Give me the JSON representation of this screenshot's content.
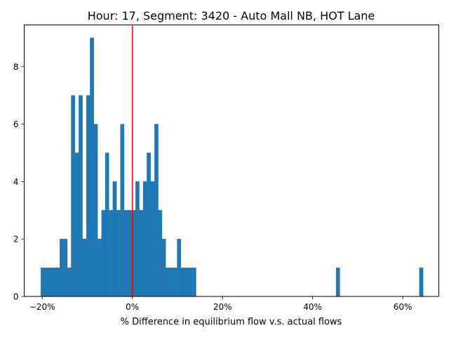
{
  "chart_data": {
    "type": "bar",
    "title": "Hour: 17, Segment: 3420 - Auto Mall NB, HOT Lane",
    "xlabel": "% Difference in equilibrium flow v.s. actual flows",
    "ylabel": "",
    "xlim": [
      -24,
      68
    ],
    "ylim": [
      0,
      9.45
    ],
    "grid": false,
    "bar_color": "#1f77b4",
    "reference_line": {
      "x": 0,
      "color": "#ff0000"
    },
    "x_ticks": [
      {
        "value": -20,
        "label": "−20%"
      },
      {
        "value": 0,
        "label": "0%"
      },
      {
        "value": 20,
        "label": "20%"
      },
      {
        "value": 40,
        "label": "40%"
      },
      {
        "value": 60,
        "label": "60%"
      }
    ],
    "y_ticks": [
      {
        "value": 0,
        "label": "0"
      },
      {
        "value": 2,
        "label": "2"
      },
      {
        "value": 4,
        "label": "4"
      },
      {
        "value": 6,
        "label": "6"
      },
      {
        "value": 8,
        "label": "8"
      }
    ],
    "bin_width": 0.84,
    "bins": [
      {
        "x": -20.3,
        "count": 1
      },
      {
        "x": -19.46,
        "count": 1
      },
      {
        "x": -18.62,
        "count": 1
      },
      {
        "x": -17.78,
        "count": 1
      },
      {
        "x": -16.94,
        "count": 1
      },
      {
        "x": -16.1,
        "count": 2
      },
      {
        "x": -15.26,
        "count": 2
      },
      {
        "x": -14.42,
        "count": 1
      },
      {
        "x": -13.58,
        "count": 7
      },
      {
        "x": -12.74,
        "count": 5
      },
      {
        "x": -11.9,
        "count": 7
      },
      {
        "x": -11.06,
        "count": 2
      },
      {
        "x": -10.22,
        "count": 7
      },
      {
        "x": -9.38,
        "count": 9
      },
      {
        "x": -8.54,
        "count": 6
      },
      {
        "x": -7.7,
        "count": 2
      },
      {
        "x": -6.86,
        "count": 3
      },
      {
        "x": -6.02,
        "count": 5
      },
      {
        "x": -5.18,
        "count": 3
      },
      {
        "x": -4.34,
        "count": 4
      },
      {
        "x": -3.5,
        "count": 3
      },
      {
        "x": -2.66,
        "count": 6
      },
      {
        "x": -1.82,
        "count": 3
      },
      {
        "x": -0.98,
        "count": 3
      },
      {
        "x": -0.14,
        "count": 3
      },
      {
        "x": 0.7,
        "count": 4
      },
      {
        "x": 1.54,
        "count": 3
      },
      {
        "x": 2.38,
        "count": 4
      },
      {
        "x": 3.22,
        "count": 5
      },
      {
        "x": 4.06,
        "count": 4
      },
      {
        "x": 4.9,
        "count": 6
      },
      {
        "x": 5.74,
        "count": 3
      },
      {
        "x": 6.58,
        "count": 2
      },
      {
        "x": 7.42,
        "count": 1
      },
      {
        "x": 8.26,
        "count": 1
      },
      {
        "x": 9.1,
        "count": 1
      },
      {
        "x": 9.94,
        "count": 2
      },
      {
        "x": 10.78,
        "count": 1
      },
      {
        "x": 11.62,
        "count": 1
      },
      {
        "x": 12.46,
        "count": 1
      },
      {
        "x": 13.3,
        "count": 1
      },
      {
        "x": 45.2,
        "count": 1
      },
      {
        "x": 63.68,
        "count": 1
      }
    ]
  }
}
